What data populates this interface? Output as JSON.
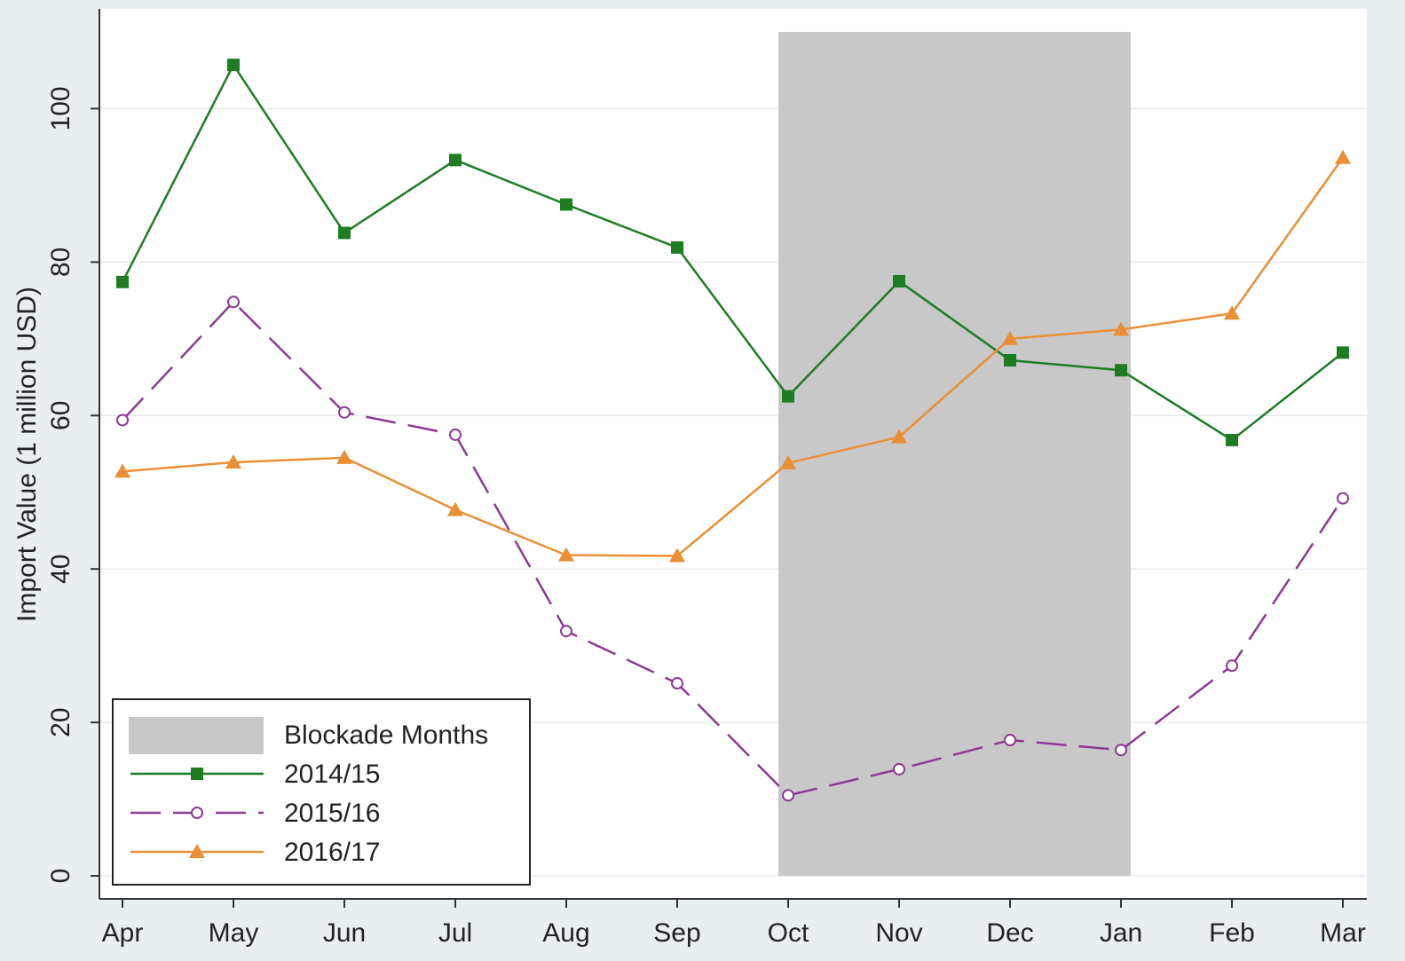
{
  "chart_data": {
    "type": "line",
    "y_label": "Import Value (1 million USD)",
    "categories": [
      "Apr",
      "May",
      "Jun",
      "Jul",
      "Aug",
      "Sep",
      "Oct",
      "Nov",
      "Dec",
      "Jan",
      "Feb",
      "Mar"
    ],
    "shade": {
      "label": "Blockade Months",
      "from": "Oct",
      "to": "Jan",
      "top": 110,
      "color": "#c8c8c8"
    },
    "series": [
      {
        "name": "2014/15",
        "color": "#1e7d23",
        "marker": "square",
        "dash": false,
        "values": [
          77.4,
          105.7,
          83.8,
          93.3,
          87.5,
          81.9,
          62.5,
          77.5,
          67.2,
          65.9,
          56.8,
          68.2
        ]
      },
      {
        "name": "2015/16",
        "color": "#8c3a93",
        "marker": "circle",
        "dash": true,
        "values": [
          59.4,
          74.8,
          60.4,
          57.5,
          31.9,
          25.1,
          10.5,
          13.9,
          17.7,
          16.4,
          27.4,
          49.2
        ]
      },
      {
        "name": "2016/17",
        "color": "#e98f35",
        "marker": "triangle",
        "dash": false,
        "values": [
          52.7,
          53.9,
          54.5,
          47.7,
          41.8,
          41.7,
          53.8,
          57.2,
          70.0,
          71.2,
          73.3,
          93.6
        ]
      }
    ],
    "ylim": [
      -3,
      113
    ],
    "yticks": [
      0,
      20,
      40,
      60,
      80,
      100
    ],
    "grid": true,
    "legend": "lower left"
  }
}
